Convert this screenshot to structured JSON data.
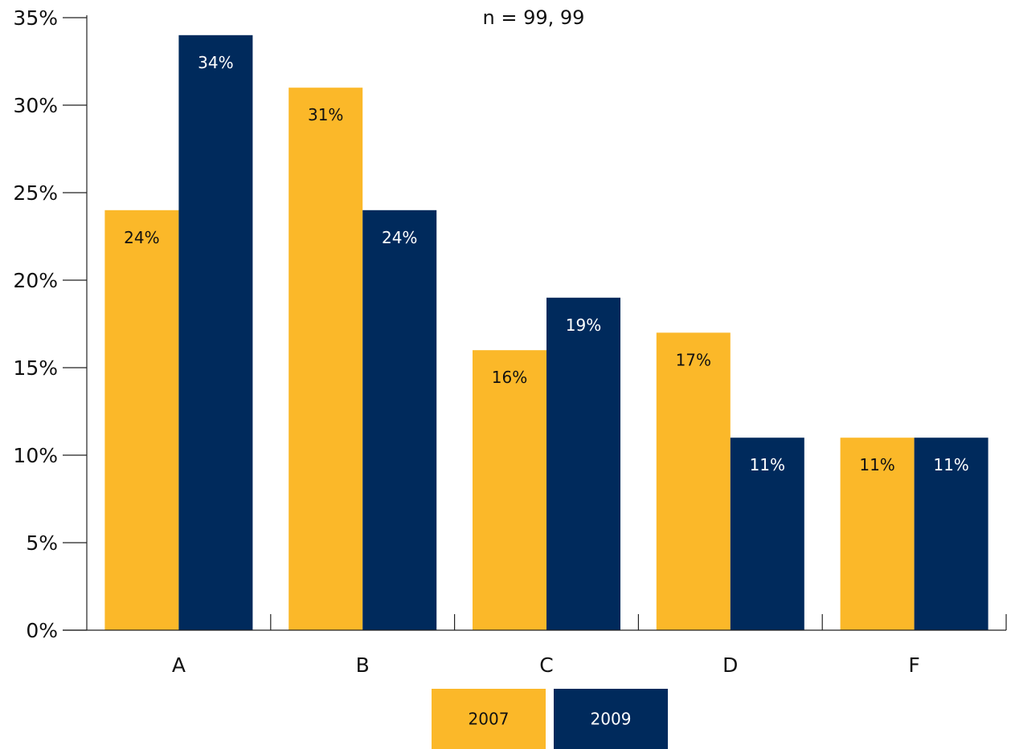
{
  "chart_data": {
    "type": "bar",
    "annotation": "n = 99, 99",
    "categories": [
      "A",
      "B",
      "C",
      "D",
      "F"
    ],
    "series": [
      {
        "name": "2007",
        "values": [
          24,
          31,
          16,
          17,
          11
        ],
        "labels": [
          "24%",
          "31%",
          "16%",
          "17%",
          "11%"
        ],
        "color": "#FBB829",
        "label_color": "#111111"
      },
      {
        "name": "2009",
        "values": [
          34,
          24,
          19,
          11,
          11
        ],
        "labels": [
          "34%",
          "24%",
          "19%",
          "11%",
          "11%"
        ],
        "color": "#002A5C",
        "label_color": "#ffffff"
      }
    ],
    "y_ticks": [
      "0%",
      "5%",
      "10%",
      "15%",
      "20%",
      "25%",
      "30%",
      "35%"
    ],
    "ylim": [
      0,
      35
    ],
    "xlabel": "",
    "ylabel": "",
    "grid": false,
    "legend_position": "bottom-center"
  }
}
